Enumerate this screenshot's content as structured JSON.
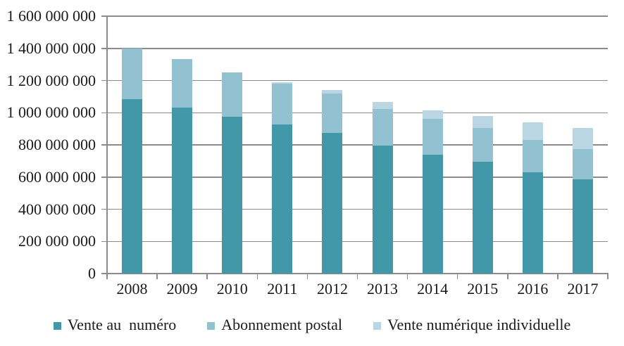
{
  "chart_data": {
    "type": "bar",
    "stacked": true,
    "title": "",
    "xlabel": "",
    "ylabel": "",
    "categories": [
      "2008",
      "2009",
      "2010",
      "2011",
      "2012",
      "2013",
      "2014",
      "2015",
      "2016",
      "2017"
    ],
    "series": [
      {
        "name": "Vente au  numéro",
        "color": "#4297a9",
        "values": [
          1085000000,
          1030000000,
          975000000,
          925000000,
          875000000,
          795000000,
          740000000,
          695000000,
          630000000,
          585000000
        ]
      },
      {
        "name": "Abonnement postal",
        "color": "#92c1d1",
        "values": [
          315000000,
          305000000,
          275000000,
          255000000,
          245000000,
          230000000,
          220000000,
          210000000,
          200000000,
          190000000
        ]
      },
      {
        "name": "Vente numérique individuelle",
        "color": "#bad6e2",
        "values": [
          0,
          0,
          0,
          10000000,
          20000000,
          40000000,
          55000000,
          75000000,
          110000000,
          130000000
        ]
      }
    ],
    "y_axis": {
      "min": 0,
      "max": 1600000000,
      "step": 200000000,
      "tick_labels": [
        "0",
        "200 000 000",
        "400 000 000",
        "600 000 000",
        "800 000 000",
        "1 000 000 000",
        "1 200 000 000",
        "1 400 000 000",
        "1 600 000 000"
      ]
    },
    "legend_position": "bottom",
    "grid": true,
    "colors": {
      "gridline": "#8b8b8b",
      "axis": "#8b8b8b",
      "text": "#1a1a1a",
      "background": "#ffffff"
    }
  }
}
